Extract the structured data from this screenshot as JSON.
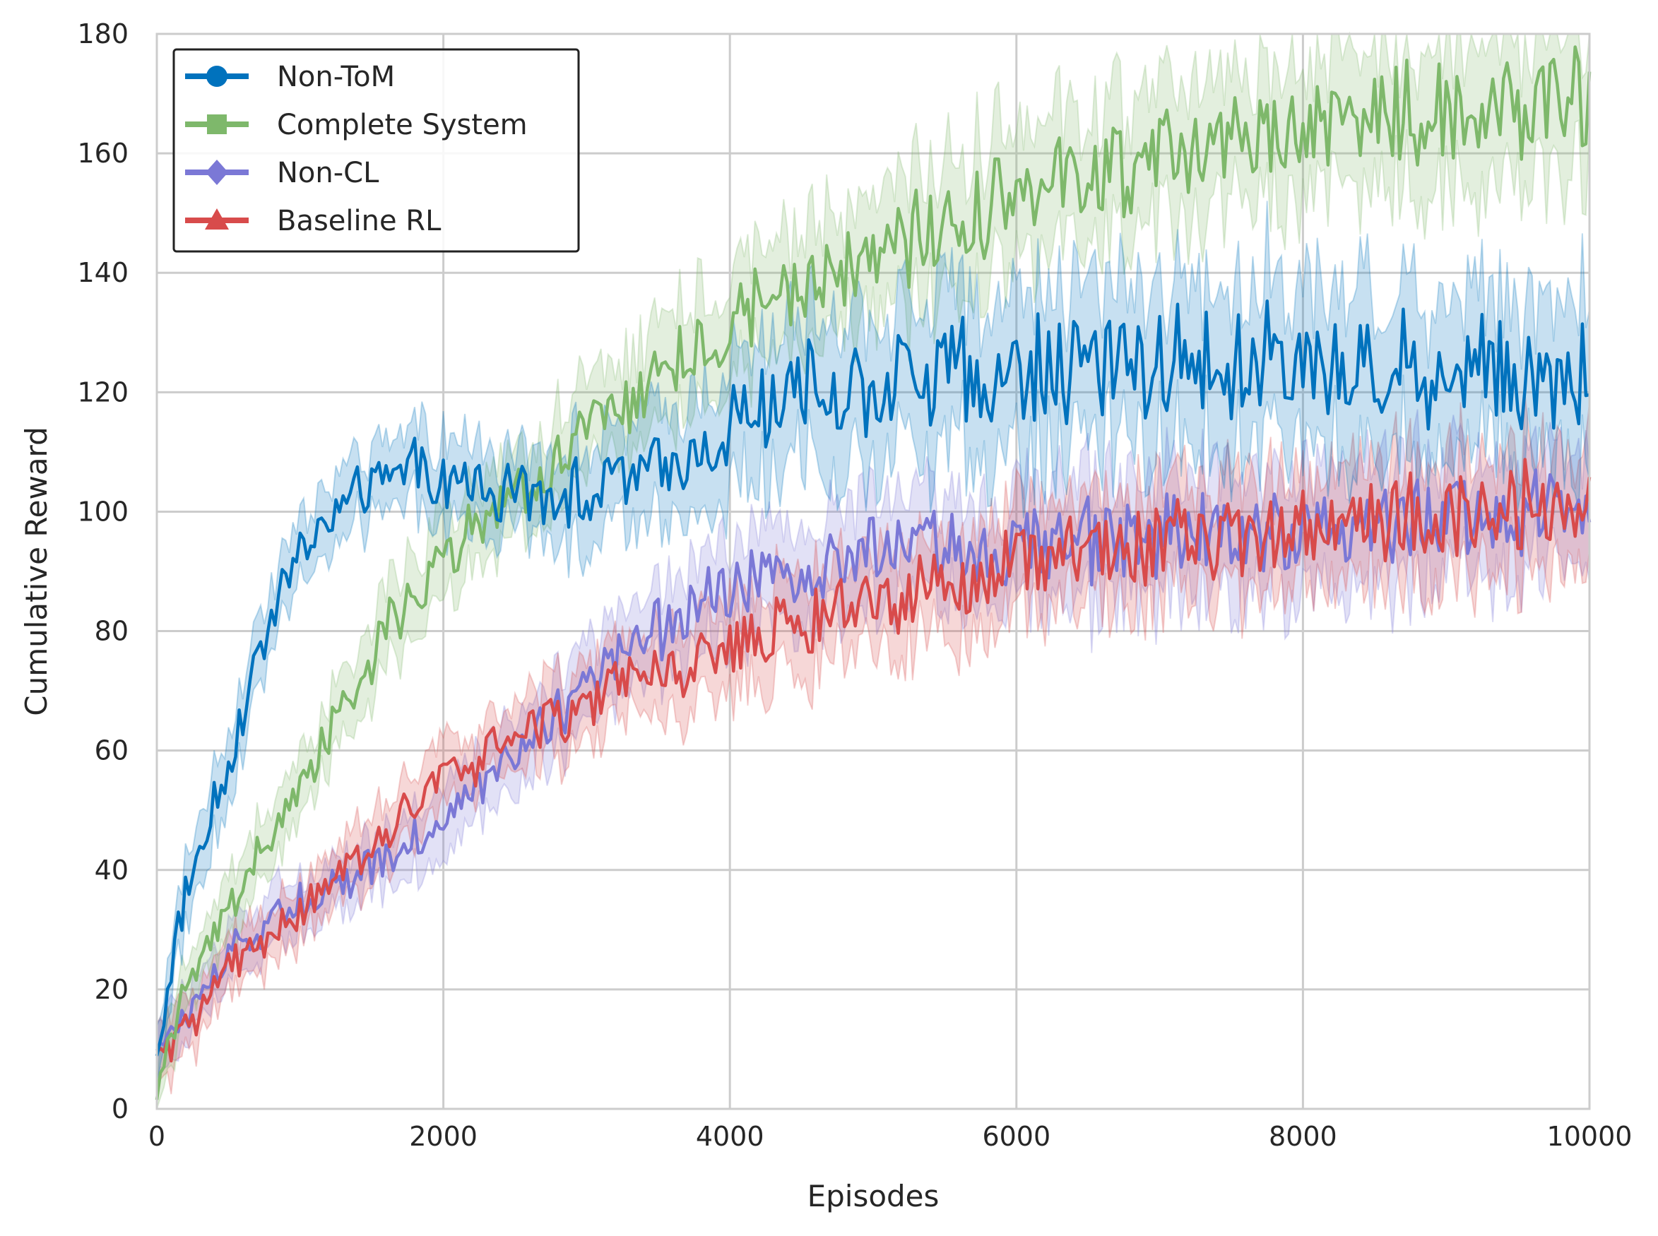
{
  "chart_data": {
    "type": "line",
    "title": "",
    "xlabel": "Episodes",
    "ylabel": "Cumulative Reward",
    "xlim": [
      0,
      10000
    ],
    "ylim": [
      0,
      180
    ],
    "xticks": [
      0,
      2000,
      4000,
      6000,
      8000,
      10000
    ],
    "yticks": [
      0,
      20,
      40,
      60,
      80,
      100,
      120,
      140,
      160,
      180
    ],
    "xtick_labels": [
      "0",
      "2000",
      "4000",
      "6000",
      "8000",
      "10000"
    ],
    "ytick_labels": [
      "0",
      "20",
      "40",
      "60",
      "80",
      "100",
      "120",
      "140",
      "160",
      "180"
    ],
    "grid": true,
    "legend_position": "upper-left",
    "shaded_band": "mean ± std (semi-transparent fill)",
    "series": [
      {
        "name": "Non-ToM",
        "color": "#0072BD",
        "marker": "circle",
        "x": [
          0,
          100,
          200,
          300,
          400,
          500,
          600,
          700,
          800,
          900,
          1000,
          1200,
          1400,
          1600,
          1800,
          2000,
          2200,
          2400,
          2600,
          2800,
          3000,
          3200,
          3400,
          3600,
          3800,
          4000,
          4200,
          4400,
          4600,
          4800,
          5000,
          5500,
          6000,
          6500,
          7000,
          7500,
          8000,
          8500,
          9000,
          9500,
          10000
        ],
        "values": [
          8,
          24,
          36,
          43,
          52,
          58,
          66,
          74,
          84,
          88,
          93,
          99,
          103,
          105,
          108,
          105,
          105,
          103,
          103,
          104,
          103,
          105,
          106,
          108,
          111,
          115,
          117,
          119,
          120,
          121,
          122,
          123,
          124,
          124,
          125,
          125,
          124,
          124,
          124,
          124,
          123
        ],
        "band": [
          4,
          4,
          5,
          5,
          5,
          5,
          5,
          5,
          5,
          5,
          5,
          5,
          5,
          5,
          6,
          6,
          6,
          6,
          6,
          7,
          7,
          7,
          8,
          8,
          9,
          9,
          10,
          10,
          11,
          11,
          11,
          11,
          12,
          12,
          12,
          12,
          12,
          12,
          12,
          12,
          12
        ]
      },
      {
        "name": "Complete System",
        "color": "#7EB86B",
        "marker": "square",
        "x": [
          0,
          100,
          200,
          300,
          400,
          500,
          600,
          700,
          800,
          900,
          1000,
          1200,
          1400,
          1600,
          1800,
          2000,
          2200,
          2400,
          2600,
          2800,
          3000,
          3200,
          3400,
          3600,
          3800,
          4000,
          4200,
          4400,
          4600,
          4800,
          5000,
          5500,
          6000,
          6500,
          7000,
          7500,
          8000,
          8500,
          9000,
          9500,
          10000
        ],
        "values": [
          3,
          13,
          20,
          25,
          29,
          33,
          38,
          43,
          46,
          49,
          53,
          62,
          71,
          80,
          86,
          92,
          97,
          101,
          104,
          108,
          112,
          116,
          121,
          125,
          128,
          131,
          134,
          136,
          138,
          140,
          143,
          148,
          153,
          156,
          159,
          162,
          164,
          166,
          167,
          168,
          170
        ],
        "band": [
          3,
          4,
          4,
          4,
          4,
          5,
          5,
          5,
          5,
          5,
          5,
          5,
          5,
          6,
          6,
          6,
          6,
          6,
          6,
          7,
          7,
          7,
          7,
          8,
          8,
          8,
          8,
          9,
          9,
          9,
          9,
          10,
          10,
          10,
          10,
          10,
          10,
          11,
          11,
          11,
          11
        ]
      },
      {
        "name": "Non-CL",
        "color": "#7B78D6",
        "marker": "diamond",
        "x": [
          0,
          100,
          200,
          300,
          400,
          500,
          600,
          700,
          800,
          900,
          1000,
          1200,
          1400,
          1600,
          1800,
          2000,
          2200,
          2400,
          2600,
          2800,
          3000,
          3200,
          3400,
          3600,
          3800,
          4000,
          4200,
          4400,
          4600,
          4800,
          5000,
          5500,
          6000,
          6500,
          7000,
          7500,
          8000,
          8500,
          9000,
          9500,
          10000
        ],
        "values": [
          10,
          12,
          16,
          19,
          22,
          25,
          28,
          29,
          31,
          33,
          35,
          37,
          39,
          42,
          45,
          49,
          52,
          57,
          62,
          66,
          70,
          74,
          78,
          82,
          85,
          87,
          89,
          90,
          91,
          92,
          93,
          94,
          94,
          95,
          96,
          97,
          97,
          98,
          99,
          100,
          100
        ],
        "band": [
          4,
          4,
          4,
          4,
          4,
          4,
          4,
          4,
          4,
          4,
          4,
          4,
          4,
          4,
          5,
          5,
          5,
          5,
          5,
          6,
          6,
          6,
          6,
          7,
          7,
          7,
          7,
          7,
          7,
          8,
          8,
          8,
          8,
          9,
          9,
          9,
          9,
          9,
          9,
          9,
          9
        ]
      },
      {
        "name": "Baseline RL",
        "color": "#D84B4B",
        "marker": "triangle",
        "x": [
          0,
          100,
          200,
          300,
          400,
          500,
          600,
          700,
          800,
          900,
          1000,
          1200,
          1400,
          1600,
          1800,
          2000,
          2200,
          2400,
          2600,
          2800,
          3000,
          3200,
          3400,
          3600,
          3800,
          4000,
          4200,
          4400,
          4600,
          4800,
          5000,
          5500,
          6000,
          6500,
          7000,
          7500,
          8000,
          8500,
          9000,
          9500,
          10000
        ],
        "values": [
          8,
          10,
          13,
          17,
          20,
          23,
          25,
          27,
          29,
          31,
          33,
          37,
          41,
          46,
          51,
          55,
          58,
          61,
          64,
          66,
          68,
          70,
          72,
          73,
          75,
          77,
          79,
          81,
          82,
          83,
          85,
          88,
          91,
          93,
          95,
          96,
          97,
          98,
          99,
          101,
          102
        ],
        "band": [
          4,
          4,
          4,
          4,
          4,
          4,
          4,
          4,
          4,
          4,
          4,
          4,
          5,
          5,
          5,
          5,
          5,
          5,
          5,
          6,
          6,
          6,
          6,
          6,
          6,
          7,
          7,
          7,
          7,
          7,
          7,
          8,
          8,
          8,
          8,
          8,
          8,
          9,
          9,
          9,
          9
        ]
      }
    ]
  }
}
